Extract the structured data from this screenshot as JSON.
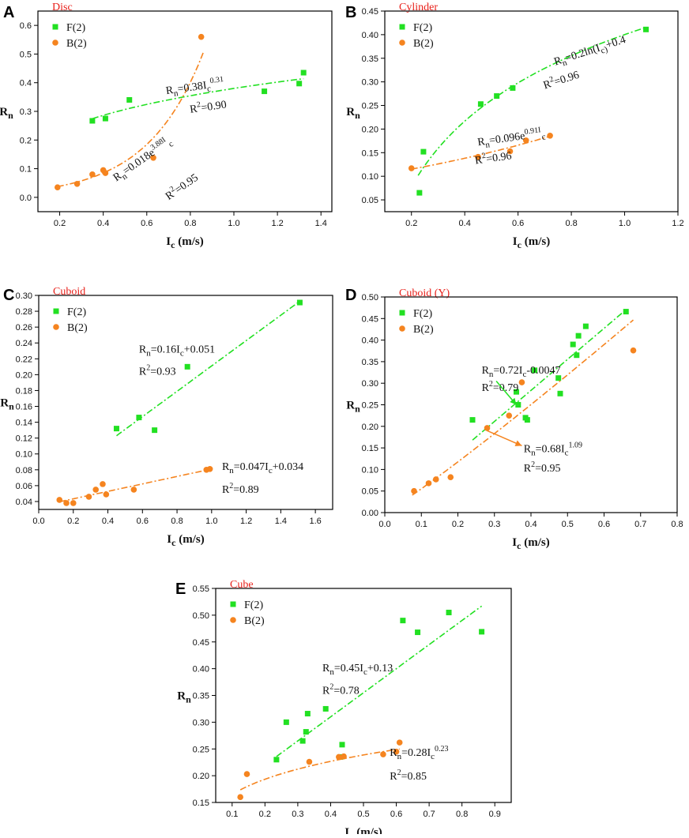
{
  "figure": {
    "colors": {
      "F": "#22e022",
      "B": "#f5841f",
      "title": "#e8201a",
      "axis": "#000000"
    },
    "ylabel": {
      "main": "R",
      "sub": "n"
    },
    "xlabel": {
      "main": "I",
      "sub": "c",
      "unit": " (m/s)"
    }
  },
  "chart_data": [
    {
      "id": "A",
      "letter": "A",
      "title": "Disc",
      "type": "scatter",
      "xlabel": "Ic (m/s)",
      "ylabel": "Rn",
      "xlim": [
        0.1,
        1.45
      ],
      "ylim": [
        -0.05,
        0.65
      ],
      "xticks": [
        0.2,
        0.4,
        0.6,
        0.8,
        1.0,
        1.2,
        1.4
      ],
      "xtick_labels": [
        "0.2",
        "0.4",
        "0.6",
        "0.8",
        "1.0",
        "1.2",
        "1.4"
      ],
      "yticks": [
        0.0,
        0.1,
        0.2,
        0.3,
        0.4,
        0.5,
        0.6
      ],
      "ytick_labels": [
        "0.0",
        "0.1",
        "0.2",
        "0.3",
        "0.4",
        "0.5",
        "0.6"
      ],
      "legend": [
        "F(2)",
        "B(2)"
      ],
      "series": [
        {
          "name": "F(2)",
          "marker": "square",
          "x": [
            0.35,
            0.41,
            0.52,
            1.14,
            1.3,
            1.32
          ],
          "y": [
            0.267,
            0.275,
            0.34,
            0.37,
            0.397,
            0.435
          ],
          "fit": {
            "model": "power",
            "a": 0.38,
            "b": 0.31,
            "from": 0.35,
            "to": 1.32
          }
        },
        {
          "name": "B(2)",
          "marker": "circle",
          "x": [
            0.19,
            0.28,
            0.35,
            0.4,
            0.41,
            0.63,
            0.85
          ],
          "y": [
            0.035,
            0.047,
            0.08,
            0.095,
            0.085,
            0.138,
            0.56
          ],
          "fit": {
            "model": "exp",
            "a": 0.018,
            "b": 3.88,
            "from": 0.19,
            "to": 0.86
          }
        }
      ],
      "annotations": [
        {
          "text": "R_n=0.38I_c^0.31",
          "x": 0.69,
          "y": 0.36,
          "rotate": -8
        },
        {
          "text": "R^2=0.90",
          "x": 0.8,
          "y": 0.295,
          "rotate": -8
        },
        {
          "text": "R_n=0.018e^3.88I_c",
          "x": 0.46,
          "y": 0.055,
          "rotate": -35
        },
        {
          "text": "R^2=0.95",
          "x": 0.7,
          "y": -0.01,
          "rotate": -35
        }
      ]
    },
    {
      "id": "B",
      "letter": "B",
      "title": "Cylinder",
      "type": "scatter",
      "xlabel": "Ic (m/s)",
      "ylabel": "Rn",
      "xlim": [
        0.1,
        1.2
      ],
      "ylim": [
        0.025,
        0.45
      ],
      "xticks": [
        0.2,
        0.4,
        0.6,
        0.8,
        1.0,
        1.2
      ],
      "xtick_labels": [
        "0.2",
        "0.4",
        "0.6",
        "0.8",
        "1.0",
        "1.2"
      ],
      "yticks": [
        0.05,
        0.1,
        0.15,
        0.2,
        0.25,
        0.3,
        0.35,
        0.4,
        0.45
      ],
      "ytick_labels": [
        "0.05",
        "0.10",
        "0.15",
        "0.20",
        "0.25",
        "0.30",
        "0.35",
        "0.40",
        "0.45"
      ],
      "legend": [
        "F(2)",
        "B(2)"
      ],
      "series": [
        {
          "name": "F(2)",
          "marker": "square",
          "x": [
            0.23,
            0.245,
            0.46,
            0.52,
            0.58,
            1.08
          ],
          "y": [
            0.065,
            0.152,
            0.253,
            0.27,
            0.287,
            0.411
          ],
          "fit": {
            "model": "log",
            "a": 0.2,
            "b": 0.4,
            "from": 0.225,
            "to": 1.08
          }
        },
        {
          "name": "B(2)",
          "marker": "circle",
          "x": [
            0.2,
            0.45,
            0.57,
            0.63,
            0.72
          ],
          "y": [
            0.117,
            0.141,
            0.153,
            0.176,
            0.186
          ],
          "fit": {
            "model": "exp",
            "a": 0.096,
            "b": 0.91,
            "from": 0.2,
            "to": 0.72
          }
        }
      ],
      "annotations": [
        {
          "text": "R_n=0.2ln(I_c)+0.4",
          "x": 0.74,
          "y": 0.335,
          "rotate": -18
        },
        {
          "text": "R^2=0.96",
          "x": 0.7,
          "y": 0.285,
          "rotate": -18
        },
        {
          "text": "R_n=0.096e^0.91I_c",
          "x": 0.45,
          "y": 0.165,
          "rotate": -8
        },
        {
          "text": "R^2=0.96",
          "x": 0.44,
          "y": 0.126,
          "rotate": -8
        }
      ]
    },
    {
      "id": "C",
      "letter": "C",
      "title": "Cuboid",
      "type": "scatter",
      "xlabel": "Ic (m/s)",
      "ylabel": "Rn",
      "xlim": [
        0.0,
        1.7
      ],
      "ylim": [
        0.03,
        0.3
      ],
      "xticks": [
        0.0,
        0.2,
        0.4,
        0.6,
        0.8,
        1.0,
        1.2,
        1.4,
        1.6
      ],
      "xtick_labels": [
        "0.0",
        "0.2",
        "0.4",
        "0.6",
        "0.8",
        "1.0",
        "1.2",
        "1.4",
        "1.6"
      ],
      "yticks": [
        0.04,
        0.06,
        0.08,
        0.1,
        0.12,
        0.14,
        0.16,
        0.18,
        0.2,
        0.22,
        0.24,
        0.26,
        0.28,
        0.3
      ],
      "ytick_labels": [
        "0.04",
        "0.06",
        "0.08",
        "0.10",
        "0.12",
        "0.14",
        "0.16",
        "0.18",
        "0.20",
        "0.22",
        "0.24",
        "0.26",
        "0.28",
        "0.30"
      ],
      "legend": [
        "F(2)",
        "B(2)"
      ],
      "series": [
        {
          "name": "F(2)",
          "marker": "square",
          "x": [
            0.45,
            0.58,
            0.67,
            0.86,
            1.51
          ],
          "y": [
            0.132,
            0.146,
            0.13,
            0.21,
            0.291
          ],
          "fit": {
            "model": "linear",
            "a": 0.16,
            "b": 0.051,
            "from": 0.45,
            "to": 1.51
          }
        },
        {
          "name": "B(2)",
          "marker": "circle",
          "x": [
            0.12,
            0.16,
            0.2,
            0.29,
            0.33,
            0.37,
            0.39,
            0.55,
            0.97,
            0.99
          ],
          "y": [
            0.042,
            0.038,
            0.038,
            0.046,
            0.055,
            0.062,
            0.049,
            0.055,
            0.08,
            0.081
          ],
          "fit": {
            "model": "linear",
            "a": 0.047,
            "b": 0.034,
            "from": 0.12,
            "to": 1.0
          }
        }
      ],
      "annotations": [
        {
          "text": "R_n=0.16I_c+0.051",
          "x": 0.58,
          "y": 0.228,
          "rotate": 0
        },
        {
          "text": "R^2=0.93",
          "x": 0.58,
          "y": 0.2,
          "rotate": 0
        },
        {
          "text": "R_n=0.047I_c+0.034",
          "x": 1.06,
          "y": 0.08,
          "rotate": 0
        },
        {
          "text": "R^2=0.89",
          "x": 1.06,
          "y": 0.051,
          "rotate": 0
        }
      ]
    },
    {
      "id": "D",
      "letter": "D",
      "title": "Cuboid (Y)",
      "type": "scatter",
      "xlabel": "Ic (m/s)",
      "ylabel": "Rn",
      "xlim": [
        0.0,
        0.8
      ],
      "ylim": [
        0.0,
        0.5
      ],
      "xticks": [
        0.0,
        0.1,
        0.2,
        0.3,
        0.4,
        0.5,
        0.6,
        0.7,
        0.8
      ],
      "xtick_labels": [
        "0.0",
        "0.1",
        "0.2",
        "0.3",
        "0.4",
        "0.5",
        "0.6",
        "0.7",
        "0.8"
      ],
      "yticks": [
        0.0,
        0.05,
        0.1,
        0.15,
        0.2,
        0.25,
        0.3,
        0.35,
        0.4,
        0.45,
        0.5
      ],
      "ytick_labels": [
        "0.00",
        "0.05",
        "0.10",
        "0.15",
        "0.20",
        "0.25",
        "0.30",
        "0.35",
        "0.40",
        "0.45",
        "0.50"
      ],
      "legend": [
        "F(2)",
        "B(2)"
      ],
      "series": [
        {
          "name": "F(2)",
          "marker": "square",
          "x": [
            0.24,
            0.36,
            0.365,
            0.385,
            0.39,
            0.41,
            0.475,
            0.48,
            0.515,
            0.525,
            0.53,
            0.55,
            0.66
          ],
          "y": [
            0.215,
            0.28,
            0.25,
            0.22,
            0.215,
            0.33,
            0.312,
            0.276,
            0.39,
            0.365,
            0.41,
            0.432,
            0.466
          ],
          "fit": {
            "model": "linear",
            "a": 0.72,
            "b": -0.0047,
            "from": 0.24,
            "to": 0.66
          }
        },
        {
          "name": "B(2)",
          "marker": "circle",
          "x": [
            0.08,
            0.12,
            0.14,
            0.18,
            0.28,
            0.34,
            0.375,
            0.68
          ],
          "y": [
            0.05,
            0.068,
            0.077,
            0.082,
            0.196,
            0.225,
            0.302,
            0.376
          ],
          "fit": {
            "model": "power",
            "a": 0.68,
            "b": 1.09,
            "from": 0.075,
            "to": 0.68
          }
        }
      ],
      "annotations": [
        {
          "text": "R_n=0.72I_c-0.0047",
          "x": 0.265,
          "y": 0.322,
          "rotate": 0
        },
        {
          "text": "R^2=0.79",
          "x": 0.265,
          "y": 0.282,
          "rotate": 0
        },
        {
          "text": "R_n=0.68I_c^1.09",
          "x": 0.38,
          "y": 0.14,
          "rotate": 0
        },
        {
          "text": "R^2=0.95",
          "x": 0.38,
          "y": 0.095,
          "rotate": 0
        }
      ],
      "arrows": [
        {
          "from": [
            0.305,
            0.305
          ],
          "to": [
            0.36,
            0.25
          ]
        },
        {
          "from": [
            0.28,
            0.19
          ],
          "to": [
            0.375,
            0.155
          ]
        }
      ]
    },
    {
      "id": "E",
      "letter": "E",
      "title": "Cube",
      "type": "scatter",
      "xlabel": "Ic (m/s)",
      "ylabel": "Rn",
      "xlim": [
        0.05,
        0.95
      ],
      "ylim": [
        0.15,
        0.55
      ],
      "xticks": [
        0.1,
        0.2,
        0.3,
        0.4,
        0.5,
        0.6,
        0.7,
        0.8,
        0.9
      ],
      "xtick_labels": [
        "0.1",
        "0.2",
        "0.3",
        "0.4",
        "0.5",
        "0.6",
        "0.7",
        "0.8",
        "0.9"
      ],
      "yticks": [
        0.15,
        0.2,
        0.25,
        0.3,
        0.35,
        0.4,
        0.45,
        0.5,
        0.55
      ],
      "ytick_labels": [
        "0.15",
        "0.20",
        "0.25",
        "0.30",
        "0.35",
        "0.40",
        "0.45",
        "0.50",
        "0.55"
      ],
      "legend": [
        "F(2)",
        "B(2)"
      ],
      "series": [
        {
          "name": "F(2)",
          "marker": "square",
          "x": [
            0.235,
            0.265,
            0.315,
            0.325,
            0.33,
            0.385,
            0.43,
            0.435,
            0.62,
            0.665,
            0.76,
            0.86
          ],
          "y": [
            0.23,
            0.3,
            0.265,
            0.282,
            0.316,
            0.325,
            0.235,
            0.258,
            0.49,
            0.468,
            0.505,
            0.469
          ],
          "fit": {
            "model": "linear",
            "a": 0.45,
            "b": 0.13,
            "from": 0.235,
            "to": 0.86
          }
        },
        {
          "name": "B(2)",
          "marker": "circle",
          "x": [
            0.125,
            0.145,
            0.335,
            0.425,
            0.44,
            0.56,
            0.6,
            0.61
          ],
          "y": [
            0.16,
            0.203,
            0.226,
            0.235,
            0.236,
            0.24,
            0.245,
            0.262
          ],
          "fit": {
            "model": "power",
            "a": 0.28,
            "b": 0.23,
            "from": 0.125,
            "to": 0.61
          }
        }
      ],
      "annotations": [
        {
          "text": "R_n=0.45I_c+0.13",
          "x": 0.375,
          "y": 0.395,
          "rotate": 0
        },
        {
          "text": "R^2=0.78",
          "x": 0.375,
          "y": 0.353,
          "rotate": 0
        },
        {
          "text": "R_n=0.28I_c^0.23",
          "x": 0.58,
          "y": 0.237,
          "rotate": 0
        },
        {
          "text": "R^2=0.85",
          "x": 0.58,
          "y": 0.193,
          "rotate": 0
        }
      ]
    }
  ]
}
